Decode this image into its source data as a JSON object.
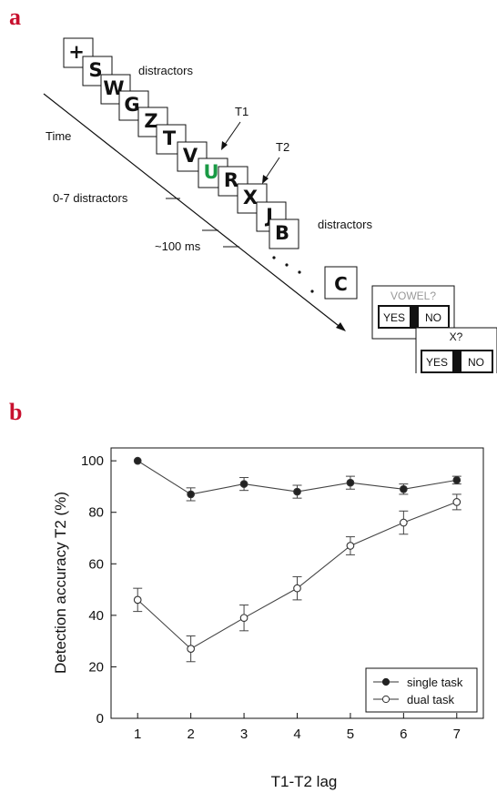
{
  "panel_a": {
    "label": "a",
    "time_label": "Time",
    "distractors_label_top": "distractors",
    "distractors_label_bottom": "distractors",
    "t1_label": "T1",
    "t2_label": "T2",
    "range_label": "0-7 distractors",
    "duration_label": "~100 ms",
    "stream": [
      {
        "letter": "+",
        "color": "#111111"
      },
      {
        "letter": "S",
        "color": "#111111"
      },
      {
        "letter": "W",
        "color": "#111111"
      },
      {
        "letter": "G",
        "color": "#111111"
      },
      {
        "letter": "Z",
        "color": "#111111"
      },
      {
        "letter": "T",
        "color": "#111111"
      },
      {
        "letter": "V",
        "color": "#111111"
      },
      {
        "letter": "U",
        "color": "#1a9a45"
      },
      {
        "letter": "R",
        "color": "#111111"
      },
      {
        "letter": "X",
        "color": "#111111"
      },
      {
        "letter": "J",
        "color": "#111111"
      },
      {
        "letter": "B",
        "color": "#111111"
      }
    ],
    "final_letter": "C",
    "question1": {
      "prompt": "VOWEL?",
      "yes": "YES",
      "no": "NO"
    },
    "question2": {
      "prompt": "X?",
      "yes": "YES",
      "no": "NO"
    }
  },
  "panel_b": {
    "label": "b"
  },
  "chart_data": {
    "type": "line",
    "title": "",
    "xlabel": "T1-T2 lag",
    "ylabel": "Detection accuracy T2  (%)",
    "x": [
      1,
      2,
      3,
      4,
      5,
      6,
      7
    ],
    "xlim": [
      0.5,
      7.5
    ],
    "ylim": [
      0,
      105
    ],
    "yticks": [
      0,
      20,
      40,
      60,
      80,
      100
    ],
    "legend_position": "bottom-right",
    "series": [
      {
        "name": "single task",
        "marker": "filled-circle",
        "values": [
          100,
          87,
          91,
          88,
          91.5,
          89,
          92.5
        ],
        "error": [
          0,
          2.5,
          2.5,
          2.5,
          2.5,
          2.0,
          1.5
        ]
      },
      {
        "name": "dual task",
        "marker": "open-circle",
        "values": [
          46,
          27,
          39,
          50.5,
          67,
          76,
          84
        ],
        "error": [
          4.5,
          5,
          5,
          4.5,
          3.5,
          4.5,
          3
        ]
      }
    ]
  }
}
